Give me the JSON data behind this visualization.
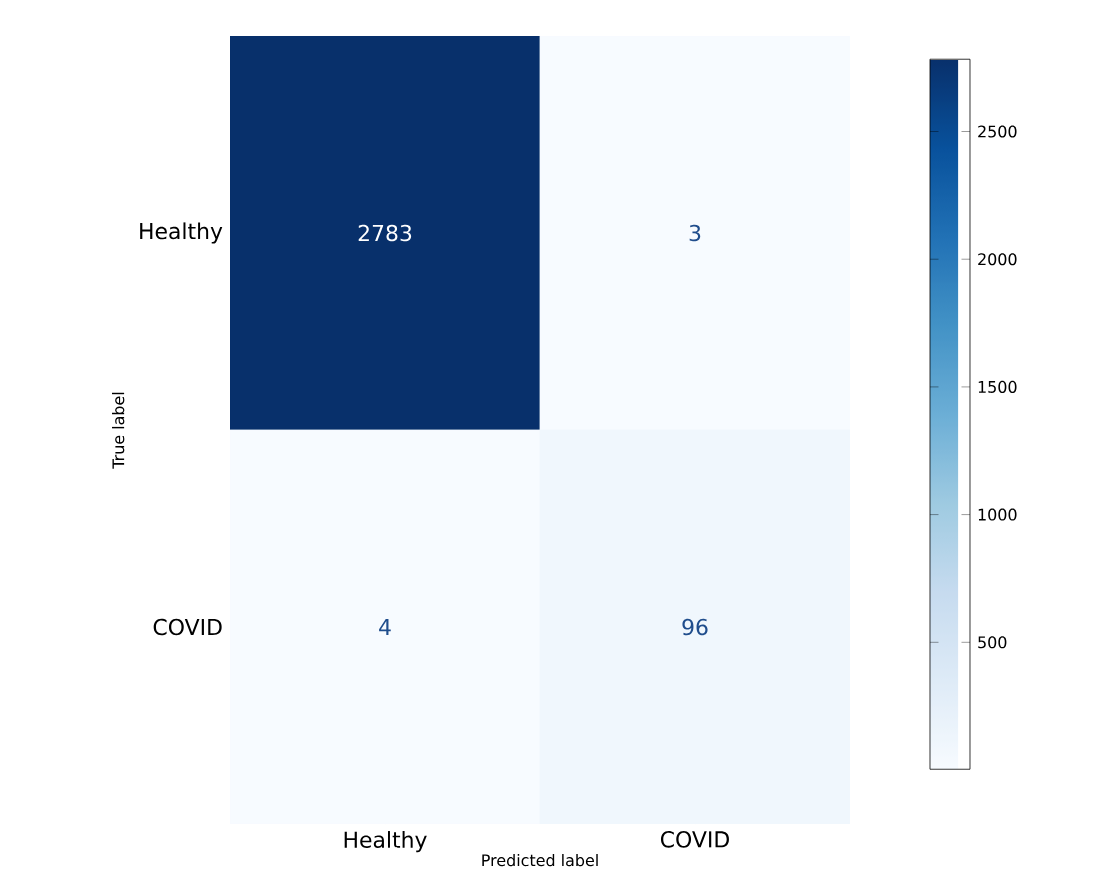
{
  "chart_data": {
    "type": "heatmap",
    "xlabel": "Predicted label",
    "ylabel": "True label",
    "categories": [
      "Healthy",
      "COVID"
    ],
    "y_categories": [
      "Healthy",
      "COVID"
    ],
    "cells": [
      [
        2783,
        3
      ],
      [
        4,
        96
      ]
    ],
    "data_labels": true,
    "clim": [
      3,
      2783
    ],
    "cticks": [
      500,
      1000,
      1500,
      2000,
      2500
    ]
  }
}
